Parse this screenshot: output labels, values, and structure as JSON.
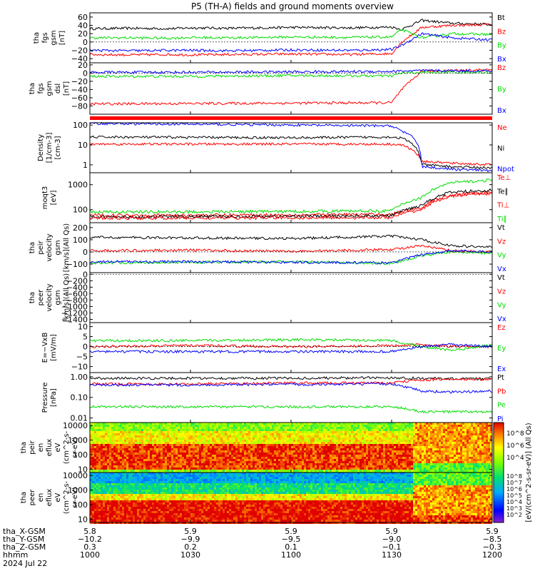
{
  "title": "P5 (TH-A) fields and ground moments overview",
  "colors": {
    "black": "#000000",
    "red": "#ff0000",
    "green": "#00dd00",
    "blue": "#0000ff"
  },
  "panels": [
    {
      "id": "fgs_gsm",
      "ylabel": [
        "tha",
        "fgs",
        "gsm",
        "[nT]"
      ],
      "scale": "linear",
      "ylim": [
        -50,
        70
      ],
      "ticks": [
        {
          "v": 60,
          "t": "60"
        },
        {
          "v": 40,
          "t": "40"
        },
        {
          "v": 20,
          "t": "20"
        },
        {
          "v": 0,
          "t": "0"
        },
        {
          "v": -20,
          "t": "−20"
        },
        {
          "v": -40,
          "t": "−40"
        }
      ],
      "legend": [
        {
          "t": "Bt",
          "c": "black"
        },
        {
          "t": "Bz",
          "c": "red"
        },
        {
          "t": "By",
          "c": "green"
        },
        {
          "t": "Bx",
          "c": "blue"
        }
      ]
    },
    {
      "id": "fgs_dsl",
      "ylabel": [
        "tha",
        "fgs",
        "gsm",
        "dsl",
        "[nT]"
      ],
      "scale": "linear",
      "ylim": [
        -100,
        25
      ],
      "ticks": [
        {
          "v": 20,
          "t": "20"
        },
        {
          "v": 0,
          "t": "0"
        },
        {
          "v": -20,
          "t": "−20"
        },
        {
          "v": -40,
          "t": "−40"
        },
        {
          "v": -60,
          "t": "−60"
        },
        {
          "v": -80,
          "t": "−80"
        }
      ],
      "legend": [
        {
          "t": "Bz",
          "c": "red"
        },
        {
          "t": "By",
          "c": "green"
        },
        {
          "t": "Bx",
          "c": "blue"
        }
      ]
    },
    {
      "id": "density",
      "ylabel": [
        "Density",
        "[1/cm-3]",
        "[cm-3]"
      ],
      "scale": "log",
      "ylim": [
        0.4,
        130
      ],
      "ticks": [
        {
          "v": 100,
          "t": "100"
        },
        {
          "v": 10,
          "t": "10"
        },
        {
          "v": 1,
          "t": "1"
        }
      ],
      "legend": [
        {
          "t": "Ne",
          "c": "red"
        },
        {
          "t": "Ni",
          "c": "black"
        },
        {
          "t": "Npot",
          "c": "blue"
        }
      ]
    },
    {
      "id": "temperature",
      "ylabel": [
        "moqt3",
        "[eV]"
      ],
      "scale": "log",
      "ylim": [
        30,
        3000
      ],
      "ticks": [
        {
          "v": 1000,
          "t": "1000"
        },
        {
          "v": 100,
          "t": "100"
        }
      ],
      "legend": [
        {
          "t": "Te⊥",
          "c": "red"
        },
        {
          "t": "Te∥",
          "c": "black"
        },
        {
          "t": "Ti⊥",
          "c": "red"
        },
        {
          "t": "Ti∥",
          "c": "green"
        }
      ]
    },
    {
      "id": "peir_velocity",
      "ylabel": [
        "tha",
        "peir",
        "velocity",
        "gsm",
        "[km/s](All Qs)"
      ],
      "scale": "linear",
      "ylim": [
        -170,
        240
      ],
      "ticks": [
        {
          "v": 200,
          "t": "200"
        },
        {
          "v": 100,
          "t": "100"
        },
        {
          "v": 0,
          "t": "0"
        },
        {
          "v": -100,
          "t": "−100"
        }
      ],
      "legend": [
        {
          "t": "Vt",
          "c": "black"
        },
        {
          "t": "Vz",
          "c": "red"
        },
        {
          "t": "Vy",
          "c": "green"
        },
        {
          "t": "Vx",
          "c": "blue"
        }
      ]
    },
    {
      "id": "peer_velocity",
      "ylabel": [
        "tha",
        "peer",
        "velocity",
        "gsm",
        "[km/s](All Qs)"
      ],
      "scale": "linear",
      "ylim": [
        -1500,
        50
      ],
      "ticks": [
        {
          "v": 0,
          "t": "0"
        },
        {
          "v": -200,
          "t": "−200"
        },
        {
          "v": -400,
          "t": "−400"
        },
        {
          "v": -600,
          "t": "−600"
        },
        {
          "v": -800,
          "t": "−800"
        },
        {
          "v": -1000,
          "t": "−1000"
        },
        {
          "v": -1200,
          "t": "−1200"
        },
        {
          "v": -1400,
          "t": "−1400"
        }
      ],
      "legend": [
        {
          "t": "Vt",
          "c": "black"
        },
        {
          "t": "Vz",
          "c": "red"
        },
        {
          "t": "Vy",
          "c": "green"
        },
        {
          "t": "Vx",
          "c": "blue"
        }
      ]
    },
    {
      "id": "efield",
      "ylabel": [
        "E=−VxB",
        "[mV/m]"
      ],
      "scale": "linear",
      "ylim": [
        -13,
        12
      ],
      "ticks": [
        {
          "v": 10,
          "t": "10"
        },
        {
          "v": 5,
          "t": "5"
        },
        {
          "v": 0,
          "t": "0"
        },
        {
          "v": -5,
          "t": "−5"
        },
        {
          "v": -10,
          "t": "−10"
        }
      ],
      "legend": [
        {
          "t": "Ez",
          "c": "red"
        },
        {
          "t": "Ey",
          "c": "green"
        },
        {
          "t": "Ex",
          "c": "blue"
        }
      ]
    },
    {
      "id": "pressure",
      "ylabel": [
        "Pressure",
        "[nPa]"
      ],
      "scale": "log",
      "ylim": [
        0.006,
        1.6
      ],
      "ticks": [
        {
          "v": 1,
          "t": "1.00"
        },
        {
          "v": 0.1,
          "t": "0.10"
        },
        {
          "v": 0.01,
          "t": "0.01"
        }
      ],
      "legend": [
        {
          "t": "Pt",
          "c": "black"
        },
        {
          "t": "Pb",
          "c": "red"
        },
        {
          "t": "Pe",
          "c": "green"
        },
        {
          "t": "Pi",
          "c": "blue"
        }
      ]
    },
    {
      "id": "peir_spec",
      "ylabel": [
        "tha",
        "peir",
        "en",
        "eflux",
        "eV",
        "(cm^2-s-",
        "sr-eV)"
      ],
      "scale": "log",
      "ylim": [
        6,
        16000
      ],
      "ticks": [
        {
          "v": 10000,
          "t": "10000"
        },
        {
          "v": 1000,
          "t": "1000"
        },
        {
          "v": 100,
          "t": "100"
        },
        {
          "v": 10,
          "t": "10"
        }
      ],
      "legend": []
    },
    {
      "id": "peer_spec",
      "ylabel": [
        "tha",
        "peer",
        "en",
        "eflux",
        "eV",
        "(cm^2-s-",
        "sr-eV)"
      ],
      "scale": "log",
      "ylim": [
        6,
        16000
      ],
      "ticks": [
        {
          "v": 10000,
          "t": "10000"
        },
        {
          "v": 1000,
          "t": "1000"
        },
        {
          "v": 100,
          "t": "100"
        },
        {
          "v": 10,
          "t": "10"
        }
      ],
      "legend": []
    }
  ],
  "colorbar": {
    "label": "[eV/(cm^2-s-sr-eV)] (All Qs)",
    "upper_ticks": [
      {
        "e": "8",
        "t": "10^8"
      },
      {
        "e": "6",
        "t": "10^6"
      },
      {
        "e": "4",
        "t": "10^4"
      }
    ],
    "lower_ticks": [
      {
        "e": "8",
        "t": "10^8"
      },
      {
        "e": "7",
        "t": "10^7"
      },
      {
        "e": "6",
        "t": "10^6"
      },
      {
        "e": "5",
        "t": "10^5"
      },
      {
        "e": "4",
        "t": "10^4"
      },
      {
        "e": "3",
        "t": "10^3"
      },
      {
        "e": "2",
        "t": "10^2"
      }
    ]
  },
  "x_axis": {
    "rows": [
      {
        "label": "tha_X-GSM",
        "values": [
          "5.8",
          "5.9",
          "5.9",
          "5.9",
          "5.9"
        ]
      },
      {
        "label": "tha_Y-GSM",
        "values": [
          "−10.2",
          "−9.9",
          "−9.5",
          "−9.0",
          "−8.5"
        ]
      },
      {
        "label": "tha_Z-GSM",
        "values": [
          "0.3",
          "0.2",
          "0.1",
          "−0.1",
          "−0.3"
        ]
      },
      {
        "label": "hhmm",
        "values": [
          "1000",
          "1030",
          "1100",
          "1130",
          "1200"
        ]
      }
    ],
    "date": "2024 Jul 22",
    "tick_hours": [
      10.0,
      10.5,
      11.0,
      11.5,
      12.0
    ],
    "range": [
      10.0,
      12.0
    ]
  },
  "chart_data": [
    {
      "type": "line",
      "title": "tha fgs gsm",
      "ylabel": "[nT]",
      "ylim": [
        -50,
        70
      ],
      "x": [
        10.0,
        10.2,
        10.4,
        10.5,
        10.7,
        11.0,
        11.3,
        11.5,
        11.55,
        11.65,
        11.8,
        12.0
      ],
      "series": [
        {
          "name": "Bt",
          "values": [
            32,
            33,
            32,
            34,
            33,
            35,
            34,
            36,
            30,
            52,
            45,
            42
          ]
        },
        {
          "name": "Bz",
          "values": [
            -30,
            -31,
            -30,
            -31,
            -30,
            -29,
            -30,
            -28,
            0,
            35,
            40,
            42
          ]
        },
        {
          "name": "By",
          "values": [
            10,
            10,
            9,
            11,
            10,
            12,
            11,
            12,
            30,
            10,
            20,
            18
          ]
        },
        {
          "name": "Bx",
          "values": [
            -20,
            -21,
            -20,
            -20,
            -21,
            -19,
            -20,
            -18,
            -8,
            20,
            10,
            5
          ]
        }
      ]
    },
    {
      "type": "line",
      "title": "tha fgs gsm dsl",
      "ylabel": "[nT]",
      "ylim": [
        -100,
        25
      ],
      "x": [
        10.0,
        10.5,
        11.0,
        11.5,
        11.55,
        11.65,
        12.0
      ],
      "series": [
        {
          "name": "Bz",
          "values": [
            -75,
            -74,
            -73,
            -72,
            -40,
            5,
            8
          ]
        },
        {
          "name": "By",
          "values": [
            -8,
            -8,
            -6,
            -7,
            0,
            2,
            2
          ]
        },
        {
          "name": "Bx",
          "values": [
            2,
            2,
            3,
            4,
            5,
            6,
            5
          ]
        }
      ]
    },
    {
      "type": "line",
      "title": "Density",
      "ylabel": "[cm-3]",
      "ylim": [
        0.4,
        130
      ],
      "x": [
        10.0,
        10.5,
        11.0,
        11.5,
        11.55,
        11.65,
        11.8,
        12.0
      ],
      "series": [
        {
          "name": "Ne",
          "values": [
            11,
            11,
            11,
            11,
            10,
            1.5,
            1.2,
            1.0
          ]
        },
        {
          "name": "Ni",
          "values": [
            25,
            24,
            23,
            25,
            22,
            1.0,
            0.8,
            0.7
          ]
        },
        {
          "name": "Npot",
          "values": [
            120,
            110,
            100,
            90,
            50,
            0.8,
            0.6,
            0.5
          ]
        }
      ]
    },
    {
      "type": "line",
      "title": "moqt3",
      "ylabel": "[eV]",
      "ylim": [
        30,
        3000
      ],
      "x": [
        10.0,
        10.5,
        11.0,
        11.5,
        11.65,
        11.8,
        12.0
      ],
      "series": [
        {
          "name": "Te⊥",
          "values": [
            60,
            60,
            62,
            65,
            120,
            400,
            500
          ]
        },
        {
          "name": "Te∥",
          "values": [
            50,
            52,
            54,
            56,
            150,
            500,
            600
          ]
        },
        {
          "name": "Ti⊥",
          "values": [
            45,
            46,
            47,
            48,
            100,
            350,
            450
          ]
        },
        {
          "name": "Ti∥",
          "values": [
            80,
            82,
            85,
            90,
            300,
            1200,
            1500
          ]
        }
      ]
    },
    {
      "type": "line",
      "title": "tha peir velocity gsm",
      "ylabel": "[km/s](All Qs)",
      "ylim": [
        -170,
        240
      ],
      "x": [
        10.0,
        10.5,
        11.0,
        11.5,
        11.65,
        11.8,
        12.0
      ],
      "series": [
        {
          "name": "Vt",
          "values": [
            120,
            115,
            110,
            130,
            100,
            50,
            40
          ]
        },
        {
          "name": "Vz",
          "values": [
            10,
            15,
            5,
            20,
            50,
            10,
            0
          ]
        },
        {
          "name": "Vy",
          "values": [
            -90,
            -85,
            -80,
            -95,
            -30,
            0,
            -10
          ]
        },
        {
          "name": "Vx",
          "values": [
            -80,
            -80,
            -85,
            -90,
            -20,
            10,
            0
          ]
        }
      ]
    },
    {
      "type": "line",
      "title": "tha peer velocity gsm",
      "ylabel": "[km/s](All Qs)",
      "ylim": [
        -1500,
        50
      ],
      "x": [],
      "series": [
        {
          "name": "Vt",
          "values": []
        },
        {
          "name": "Vz",
          "values": []
        },
        {
          "name": "Vy",
          "values": []
        },
        {
          "name": "Vx",
          "values": []
        }
      ]
    },
    {
      "type": "line",
      "title": "E=−VxB",
      "ylabel": "[mV/m]",
      "ylim": [
        -13,
        12
      ],
      "x": [
        10.0,
        10.5,
        11.0,
        11.5,
        11.65,
        11.8,
        12.0
      ],
      "series": [
        {
          "name": "Ez",
          "values": [
            0,
            0.5,
            0,
            0.5,
            1,
            0,
            0
          ]
        },
        {
          "name": "Ey",
          "values": [
            3,
            3,
            3.5,
            3,
            0,
            -2,
            1
          ]
        },
        {
          "name": "Ex",
          "values": [
            -2.5,
            -2.5,
            -2.5,
            -2.5,
            0,
            1,
            0
          ]
        }
      ]
    },
    {
      "type": "line",
      "title": "Pressure",
      "ylabel": "[nPa]",
      "ylim": [
        0.006,
        1.6
      ],
      "x": [
        10.0,
        10.5,
        11.0,
        11.5,
        11.65,
        11.8,
        12.0
      ],
      "series": [
        {
          "name": "Pt",
          "values": [
            0.85,
            0.85,
            0.85,
            0.9,
            0.85,
            0.8,
            0.8
          ]
        },
        {
          "name": "Pb",
          "values": [
            0.45,
            0.45,
            0.5,
            0.5,
            0.7,
            0.75,
            0.75
          ]
        },
        {
          "name": "Pe",
          "values": [
            0.035,
            0.035,
            0.035,
            0.035,
            0.02,
            0.02,
            0.02
          ]
        },
        {
          "name": "Pi",
          "values": [
            0.4,
            0.4,
            0.42,
            0.45,
            0.2,
            0.18,
            0.2
          ]
        }
      ]
    },
    {
      "type": "heatmap",
      "title": "tha peir en eflux",
      "ylabel": "eV",
      "ylim": [
        6,
        16000
      ],
      "zlim_log10": [
        4,
        8
      ]
    },
    {
      "type": "heatmap",
      "title": "tha peer en eflux",
      "ylabel": "eV",
      "ylim": [
        6,
        16000
      ],
      "zlim_log10": [
        2,
        8
      ]
    }
  ]
}
